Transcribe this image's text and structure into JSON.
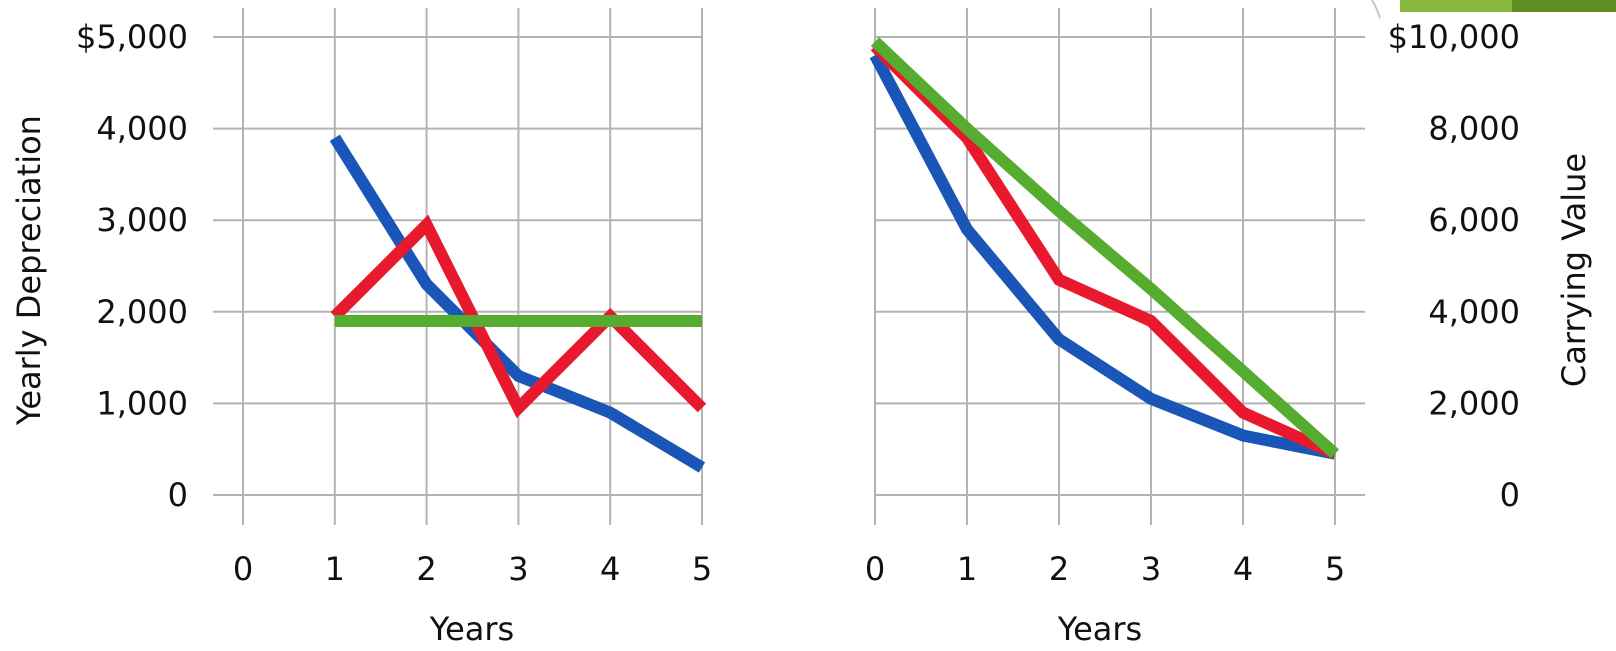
{
  "chart_data": [
    {
      "type": "line",
      "x": [
        0,
        1,
        2,
        3,
        4,
        5
      ],
      "xlabel": "Years",
      "ylabel": "Yearly Depreciation",
      "ylim": [
        0,
        5000
      ],
      "xlim": [
        0,
        5
      ],
      "yticks": [
        "0",
        "1,000",
        "2,000",
        "3,000",
        "4,000",
        "$5,000"
      ],
      "xticks": [
        "0",
        "1",
        "2",
        "3",
        "4",
        "5"
      ],
      "ytick_side": "left",
      "grid": true,
      "series": [
        {
          "color": "#1a56b8",
          "points": [
            [
              1,
              3900
            ],
            [
              2,
              2300
            ],
            [
              3,
              1300
            ],
            [
              4,
              900
            ],
            [
              5,
              300
            ]
          ]
        },
        {
          "color": "#e8192c",
          "points": [
            [
              1,
              1950
            ],
            [
              2,
              2950
            ],
            [
              3,
              950
            ],
            [
              4,
              1950
            ],
            [
              5,
              950
            ]
          ]
        },
        {
          "color": "#55ac2e",
          "points": [
            [
              1,
              1900
            ],
            [
              2,
              1900
            ],
            [
              3,
              1900
            ],
            [
              4,
              1900
            ],
            [
              5,
              1900
            ]
          ]
        }
      ]
    },
    {
      "type": "line",
      "x": [
        0,
        1,
        2,
        3,
        4,
        5
      ],
      "xlabel": "Years",
      "ylabel": "Carrying Value",
      "ylim": [
        0,
        10000
      ],
      "xlim": [
        0,
        5
      ],
      "yticks": [
        "0",
        "2,000",
        "4,000",
        "6,000",
        "8,000",
        "$10,000"
      ],
      "xticks": [
        "0",
        "1",
        "2",
        "3",
        "4",
        "5"
      ],
      "ytick_side": "right",
      "grid": true,
      "series": [
        {
          "color": "#1a56b8",
          "points": [
            [
              0,
              9600
            ],
            [
              1,
              5800
            ],
            [
              2,
              3400
            ],
            [
              3,
              2100
            ],
            [
              4,
              1300
            ],
            [
              5,
              900
            ]
          ]
        },
        {
          "color": "#e8192c",
          "points": [
            [
              0,
              9800
            ],
            [
              1,
              7800
            ],
            [
              2,
              4700
            ],
            [
              3,
              3800
            ],
            [
              4,
              1800
            ],
            [
              5,
              900
            ]
          ]
        },
        {
          "color": "#55ac2e",
          "points": [
            [
              0,
              9900
            ],
            [
              1,
              8000
            ],
            [
              2,
              6200
            ],
            [
              3,
              4500
            ],
            [
              4,
              2700
            ],
            [
              5,
              900
            ]
          ]
        }
      ]
    }
  ]
}
